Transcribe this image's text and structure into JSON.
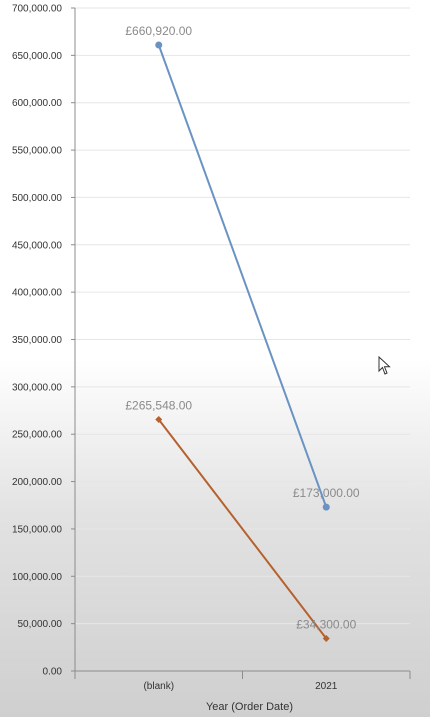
{
  "chart_data": {
    "type": "line",
    "categories": [
      "(blank)",
      "2021"
    ],
    "xlabel": "Year (Order Date)",
    "ylabel": "",
    "ylim": [
      0,
      700000
    ],
    "yticks": [
      0,
      50000,
      100000,
      150000,
      200000,
      250000,
      300000,
      350000,
      400000,
      450000,
      500000,
      550000,
      600000,
      650000,
      700000
    ],
    "ytick_labels": [
      "0.00",
      "50,000.00",
      "100,000.00",
      "150,000.00",
      "200,000.00",
      "250,000.00",
      "300,000.00",
      "350,000.00",
      "400,000.00",
      "450,000.00",
      "500,000.00",
      "550,000.00",
      "600,000.00",
      "650,000.00",
      "700,000.00"
    ],
    "grid": true,
    "series": [
      {
        "values": [
          660920,
          173000
        ],
        "data_labels": [
          "£660,920.00",
          "£173,000.00"
        ],
        "color": "#6a93c4",
        "marker": "circle"
      },
      {
        "values": [
          265548,
          34300
        ],
        "data_labels": [
          "£265,548.00",
          "£34,300.00"
        ],
        "color": "#b5612e",
        "marker": "diamond"
      }
    ]
  },
  "cursor": {
    "icon": "mouse-pointer-icon"
  }
}
